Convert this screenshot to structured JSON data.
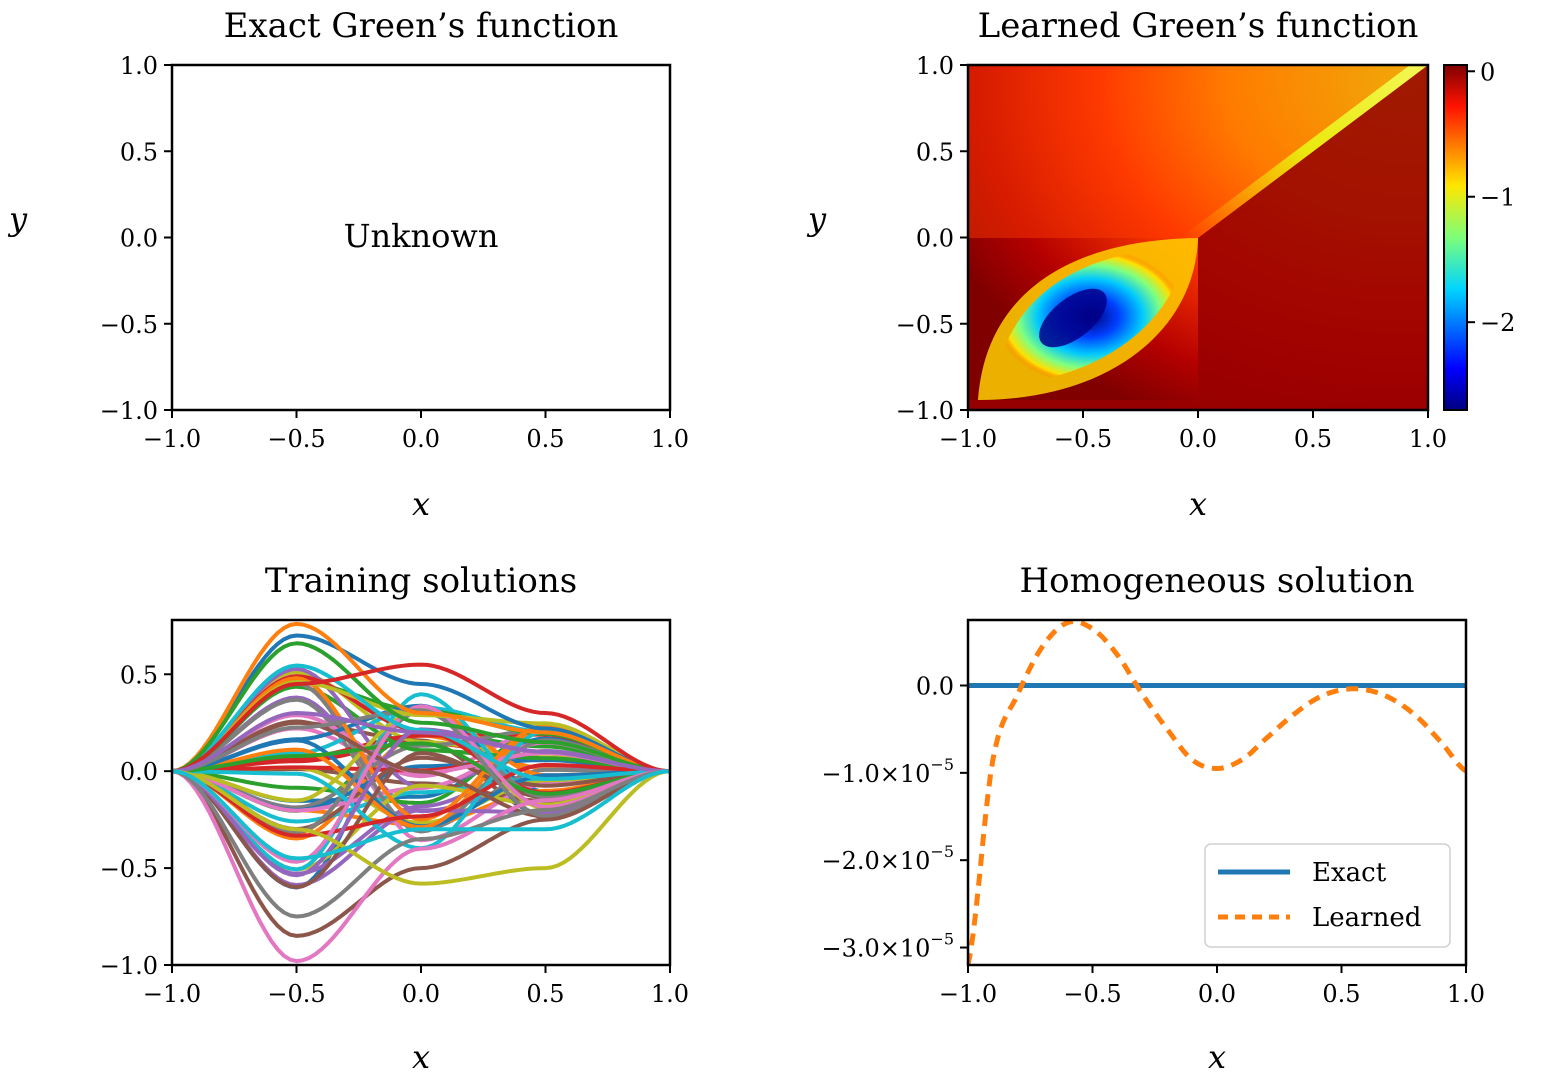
{
  "chart_data": [
    {
      "type": "heatmap",
      "title": "Exact Green’s function",
      "xlabel": "x",
      "ylabel": "y",
      "xlim": [
        -1.0,
        1.0
      ],
      "ylim": [
        -1.0,
        1.0
      ],
      "xticks": [
        "−1.0",
        "−0.5",
        "0.0",
        "0.5",
        "1.0"
      ],
      "yticks": [
        "1.0",
        "0.5",
        "0.0",
        "−0.5",
        "−1.0"
      ],
      "annotation": "Unknown"
    },
    {
      "type": "heatmap",
      "title": "Learned Green’s function",
      "xlabel": "x",
      "ylabel": "y",
      "xlim": [
        -1.0,
        1.0
      ],
      "ylim": [
        -1.0,
        1.0
      ],
      "xticks": [
        "−1.0",
        "−0.5",
        "0.0",
        "0.5",
        "1.0"
      ],
      "yticks": [
        "1.0",
        "0.5",
        "0.0",
        "−0.5",
        "−1.0"
      ],
      "colorbar": {
        "range": [
          -2.7,
          0.05
        ],
        "ticks": [
          "0",
          "−1",
          "−2"
        ],
        "colormap": "jet"
      },
      "features": {
        "minimum_value": -2.7,
        "minimum_at": [
          -0.45,
          -0.45
        ],
        "diagonal_ridge_value": -0.85
      }
    },
    {
      "type": "line",
      "title": "Training solutions",
      "xlabel": "x",
      "ylabel": "",
      "xlim": [
        -1.0,
        1.0
      ],
      "ylim": [
        -1.0,
        0.78
      ],
      "xticks": [
        "−1.0",
        "−0.5",
        "0.0",
        "0.5",
        "1.0"
      ],
      "yticks": [
        "0.5",
        "0.0",
        "−0.5",
        "−1.0"
      ],
      "series_count": 60,
      "palette": [
        "#1f77b4",
        "#ff7f0e",
        "#2ca02c",
        "#d62728",
        "#9467bd",
        "#8c564b",
        "#e377c2",
        "#7f7f7f",
        "#bcbd22",
        "#17becf"
      ],
      "x": [
        -1.0,
        -0.5,
        0.0,
        0.5,
        1.0
      ],
      "series": [
        {
          "values": [
            0.0,
            0.7,
            0.45,
            0.22,
            0.0
          ]
        },
        {
          "values": [
            0.0,
            0.76,
            0.3,
            0.2,
            0.0
          ]
        },
        {
          "values": [
            0.0,
            0.66,
            0.25,
            0.15,
            0.0
          ]
        },
        {
          "values": [
            0.0,
            0.45,
            0.55,
            0.3,
            0.0
          ]
        },
        {
          "values": [
            0.0,
            0.3,
            0.2,
            0.1,
            0.0
          ]
        },
        {
          "values": [
            0.0,
            -0.85,
            -0.5,
            -0.25,
            0.0
          ]
        },
        {
          "values": [
            0.0,
            -0.98,
            -0.4,
            -0.15,
            0.0
          ]
        },
        {
          "values": [
            0.0,
            -0.75,
            -0.35,
            -0.2,
            0.0
          ]
        },
        {
          "values": [
            0.0,
            -0.3,
            -0.58,
            -0.5,
            0.0
          ]
        },
        {
          "values": [
            0.0,
            -0.45,
            -0.3,
            -0.3,
            0.0
          ]
        }
      ]
    },
    {
      "type": "line",
      "title": "Homogeneous solution",
      "xlabel": "x",
      "ylabel": "",
      "xlim": [
        -1.0,
        1.0
      ],
      "ylim": [
        -3.2e-05,
        7.5e-06
      ],
      "xticks": [
        "−1.0",
        "−0.5",
        "0.0",
        "0.5",
        "1.0"
      ],
      "yticks": [
        {
          "value": 0.0,
          "mantissa": "0.0",
          "exponent": ""
        },
        {
          "value": -1e-05,
          "mantissa": "−1.0×10",
          "exponent": "−5"
        },
        {
          "value": -2e-05,
          "mantissa": "−2.0×10",
          "exponent": "−5"
        },
        {
          "value": -3e-05,
          "mantissa": "−3.0×10",
          "exponent": "−5"
        }
      ],
      "legend_placement": "lower right",
      "series": [
        {
          "name": "Exact",
          "color": "#1f77b4",
          "style": "solid",
          "x": [
            -1.0,
            1.0
          ],
          "values": [
            0.0,
            0.0
          ]
        },
        {
          "name": "Learned",
          "color": "#ff7f0e",
          "style": "dashed",
          "x": [
            -1.0,
            -0.9,
            -0.8,
            -0.7,
            -0.6,
            -0.5,
            -0.4,
            -0.3,
            -0.2,
            -0.1,
            0.0,
            0.1,
            0.2,
            0.3,
            0.4,
            0.5,
            0.6,
            0.7,
            0.8,
            0.9,
            1.0
          ],
          "values": [
            -3.2e-05,
            -8.5e-06,
            -1e-06,
            4.5e-06,
            7.2e-06,
            6.5e-06,
            3.5e-06,
            -1e-06,
            -5e-06,
            -8.5e-06,
            -9.5e-06,
            -8.5e-06,
            -6e-06,
            -3.5e-06,
            -1.5e-06,
            -5e-07,
            -5e-07,
            -1.5e-06,
            -3.5e-06,
            -6.5e-06,
            -9.8e-06
          ]
        }
      ]
    }
  ]
}
